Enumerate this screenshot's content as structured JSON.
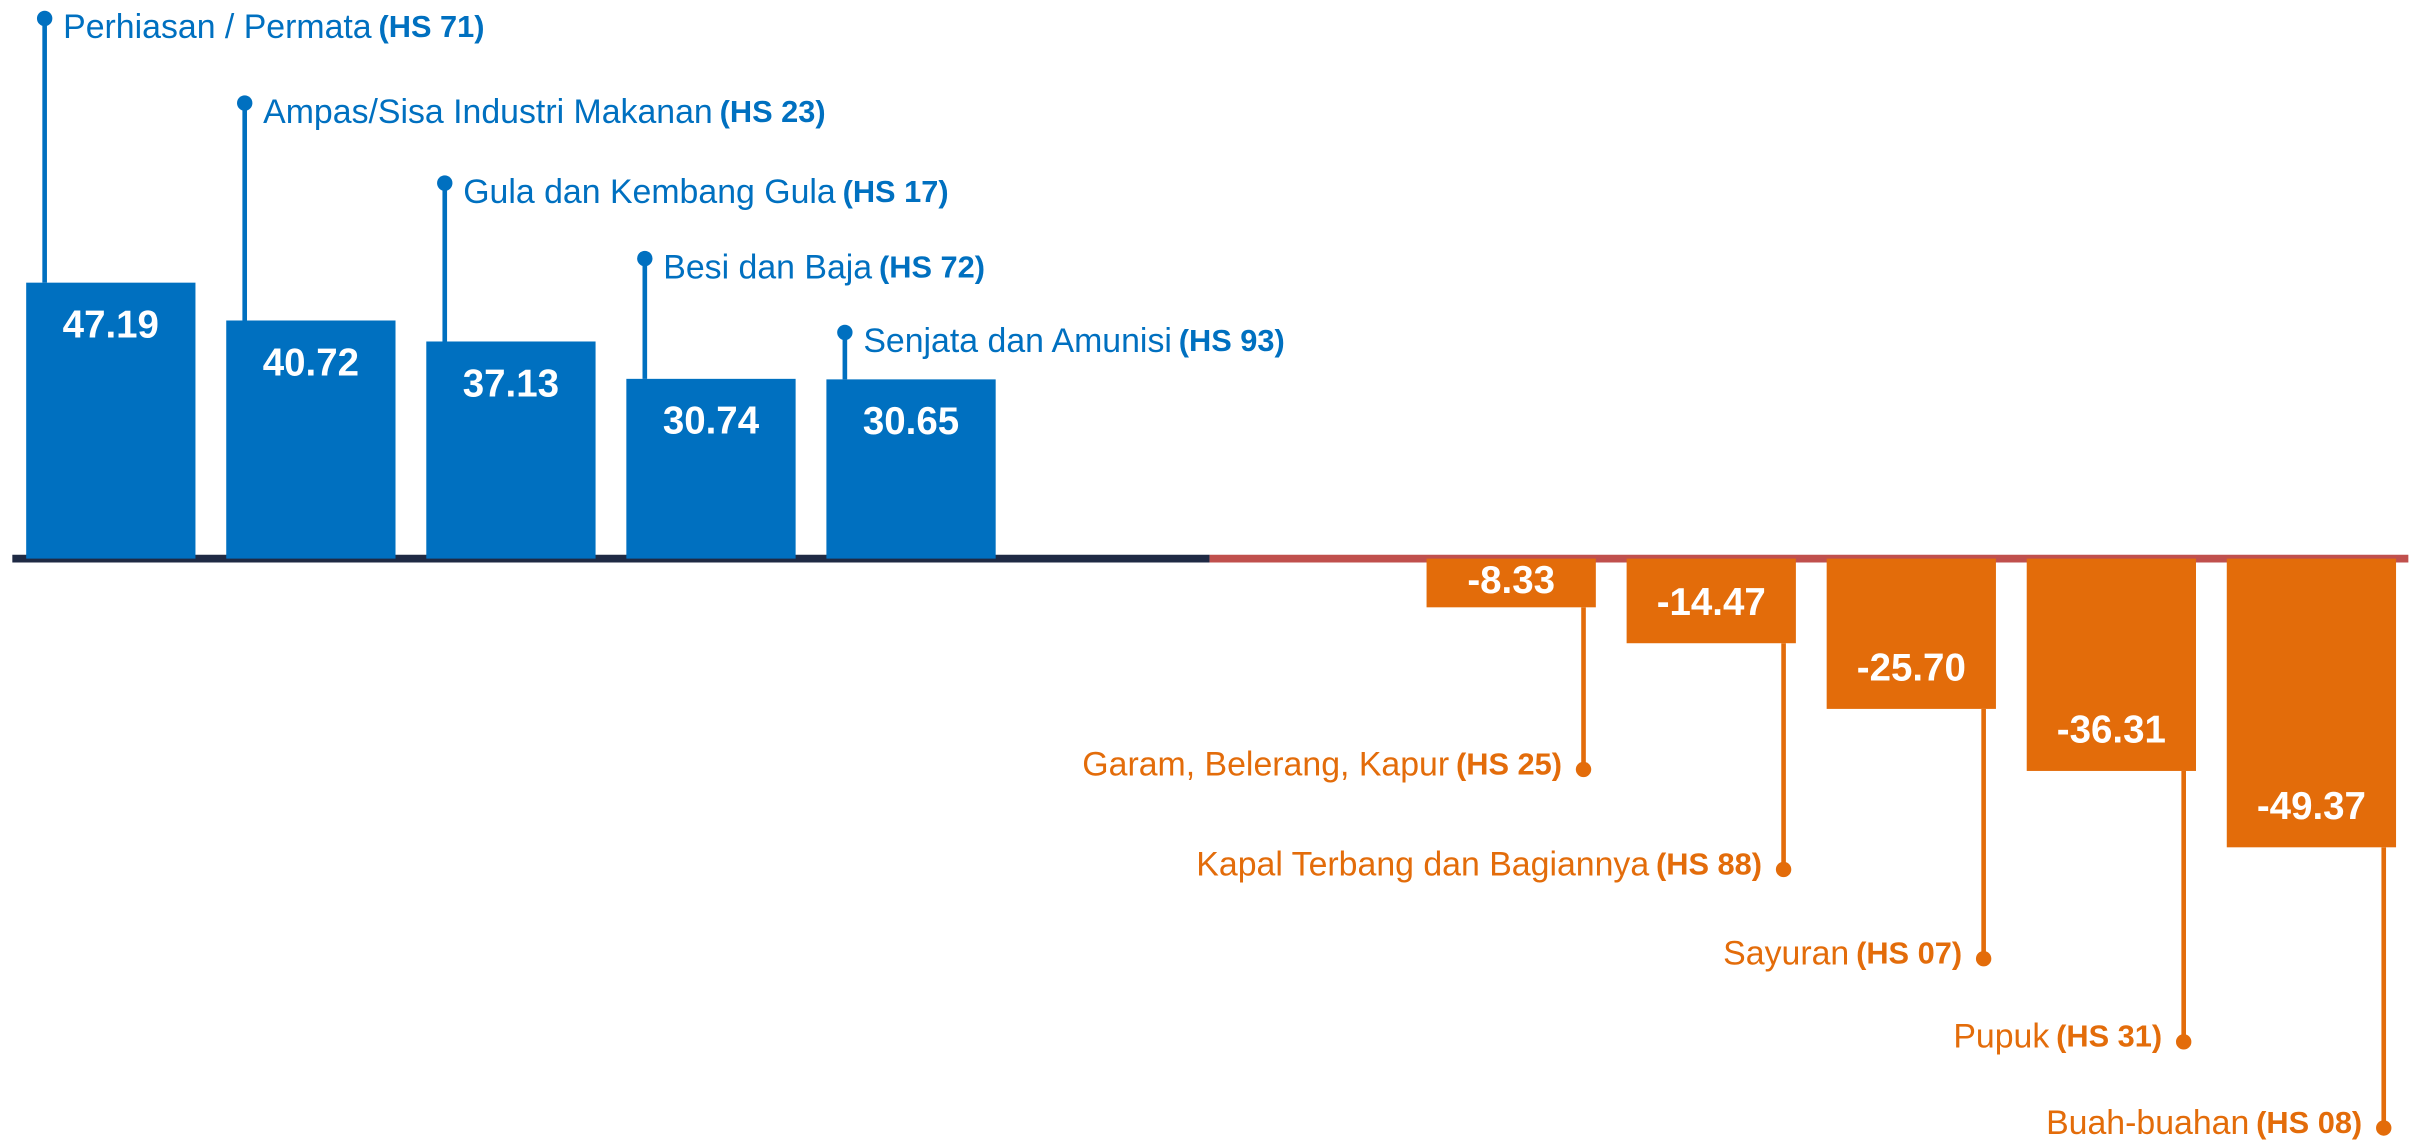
{
  "chart_data": {
    "type": "bar",
    "categories": [
      "Perhiasan / Permata",
      "Ampas/Sisa Industri Makanan",
      "Gula dan Kembang Gula",
      "Besi dan Baja",
      "Senjata dan Amunisi",
      "Garam, Belerang, Kapur",
      "Kapal Terbang dan Bagiannya",
      "Sayuran",
      "Pupuk",
      "Buah-buahan"
    ],
    "codes": [
      "(HS 71)",
      "(HS 23)",
      "(HS 17)",
      "(HS 72)",
      "(HS 93)",
      "(HS 25)",
      "(HS 88)",
      "(HS 07)",
      "(HS 31)",
      "(HS 08)"
    ],
    "values": [
      47.19,
      40.72,
      37.13,
      30.74,
      30.65,
      -8.33,
      -14.47,
      -25.7,
      -36.31,
      -49.37
    ],
    "value_labels": [
      "47.19",
      "40.72",
      "37.13",
      "30.74",
      "30.65",
      "-8.33",
      "-14.47",
      "-25.70",
      "-36.31",
      "-49.37"
    ],
    "positive_color": "#0070c0",
    "negative_color": "#e36c0a"
  }
}
